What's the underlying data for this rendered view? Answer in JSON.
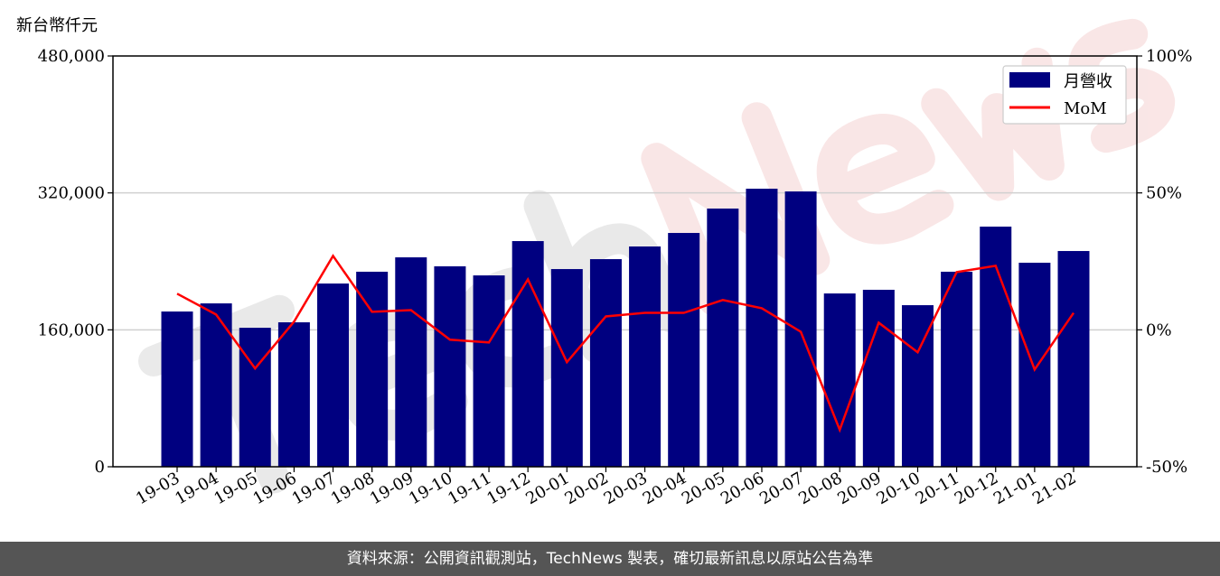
{
  "chart_data": {
    "type": "bar+line",
    "title": "",
    "ylabel": "新台幣仟元",
    "watermark": "TechNews",
    "categories": [
      "19-03",
      "19-04",
      "19-05",
      "19-06",
      "19-07",
      "19-08",
      "19-09",
      "19-10",
      "19-11",
      "19-12",
      "20-01",
      "20-02",
      "20-03",
      "20-04",
      "20-05",
      "20-06",
      "20-07",
      "20-08",
      "20-09",
      "20-10",
      "20-11",
      "20-12",
      "21-01",
      "21-02"
    ],
    "series": [
      {
        "name": "月營收",
        "type": "bar",
        "axis": "left",
        "color": "#000080",
        "values": [
          181400,
          190900,
          162400,
          168800,
          214100,
          227900,
          244700,
          234200,
          223600,
          263700,
          231000,
          242600,
          257400,
          273200,
          301700,
          324900,
          321700,
          202500,
          206800,
          188800,
          227900,
          280600,
          238400,
          252100
        ]
      },
      {
        "name": "MoM",
        "type": "line",
        "axis": "right",
        "unit": "%",
        "color": "#ff0000",
        "values": [
          13.2,
          5.6,
          -14.1,
          3.0,
          27.0,
          6.6,
          7.2,
          -3.6,
          -4.6,
          18.4,
          -11.8,
          4.9,
          6.2,
          6.2,
          10.9,
          7.9,
          -0.7,
          -36.5,
          2.6,
          -8.2,
          21.1,
          23.4,
          -14.5,
          6.2
        ]
      }
    ],
    "yleft": {
      "ylim": [
        0,
        480000
      ],
      "ticks": [
        0,
        160000,
        320000,
        480000
      ],
      "tick_labels": [
        "0",
        "160,000",
        "320,000",
        "480,000"
      ]
    },
    "yright": {
      "ylim": [
        -50,
        100
      ],
      "ticks": [
        -50,
        0,
        50,
        100
      ],
      "tick_labels": [
        "-50%",
        "0%",
        "50%",
        "100%"
      ]
    },
    "grid": "horizontal",
    "legend": {
      "placement": "top-right",
      "entries": [
        "月營收",
        "MoM"
      ]
    }
  },
  "footer": "資料來源：公開資訊觀測站，TechNews 製表，確切最新訊息以原站公告為準"
}
